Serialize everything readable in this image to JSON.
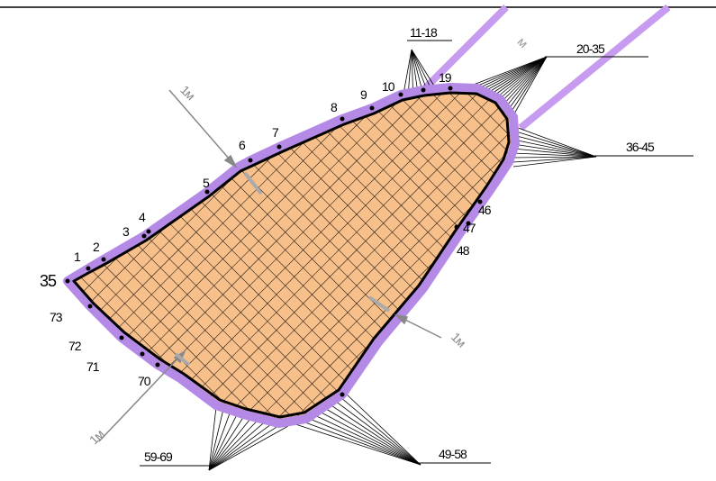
{
  "group_labels": [
    "11-18",
    "20-35",
    "36-45",
    "59-69",
    "49-58"
  ],
  "point_labels": [
    "1",
    "2",
    "3",
    "4",
    "5",
    "6",
    "7",
    "8",
    "9",
    "10",
    "19",
    "46",
    "47",
    "48",
    "73",
    "72",
    "71",
    "70"
  ],
  "start_label": "35",
  "dimension_labels": [
    "1м",
    "1м",
    "1м",
    "1м"
  ],
  "line_label": "м"
}
